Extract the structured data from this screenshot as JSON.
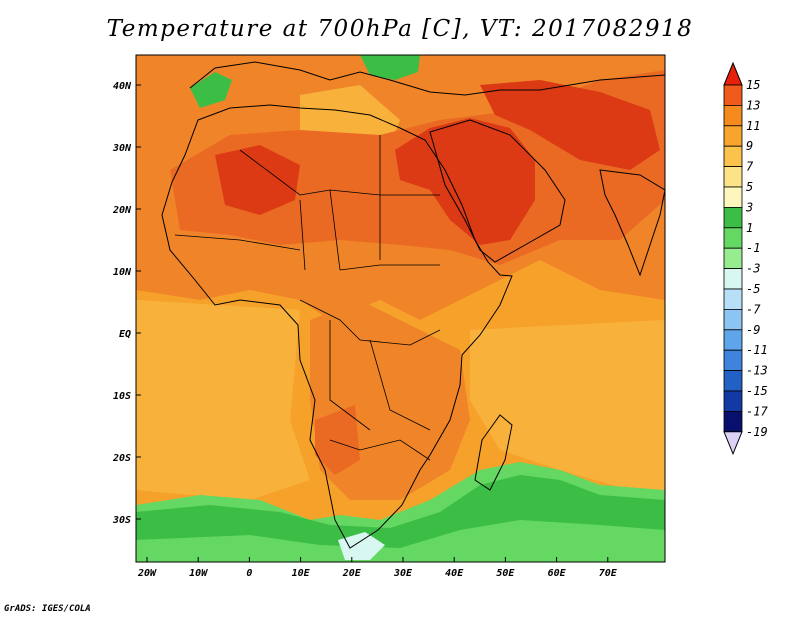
{
  "title": "Temperature at 700hPa [C], VT: 2017082918",
  "credit": "GrADS: IGES/COLA",
  "lat_labels": [
    "40N",
    "30N",
    "20N",
    "10N",
    "EQ",
    "10S",
    "20S",
    "30S"
  ],
  "lon_labels": [
    "20W",
    "10W",
    "0",
    "10E",
    "20E",
    "30E",
    "40E",
    "50E",
    "60E",
    "70E"
  ],
  "colorbar": {
    "labels": [
      "15",
      "13",
      "11",
      "9",
      "7",
      "5",
      "3",
      "1",
      "-1",
      "-3",
      "-5",
      "-7",
      "-9",
      "-11",
      "-13",
      "-15",
      "-17",
      "-19"
    ],
    "colors": [
      "#e8200a",
      "#f05a1c",
      "#f58a1e",
      "#f8a52e",
      "#fbc24c",
      "#fde387",
      "#fef7bd",
      "#3cbd45",
      "#64d863",
      "#96ec8f",
      "#d7f7f0",
      "#b7e0f8",
      "#8cc5f2",
      "#5ea5e9",
      "#3e84dd",
      "#2360c6",
      "#1339a5",
      "#08106e",
      "#dcd2f5"
    ]
  },
  "map_colors": {
    "background": "#f6a22a",
    "warm": "#f08428",
    "hot": "#ea6a24",
    "hottest": "#db3a14",
    "cool": "#f8b23c",
    "green": "#3cbd45",
    "light_green": "#64d863",
    "pale": "#d7f7f0"
  }
}
